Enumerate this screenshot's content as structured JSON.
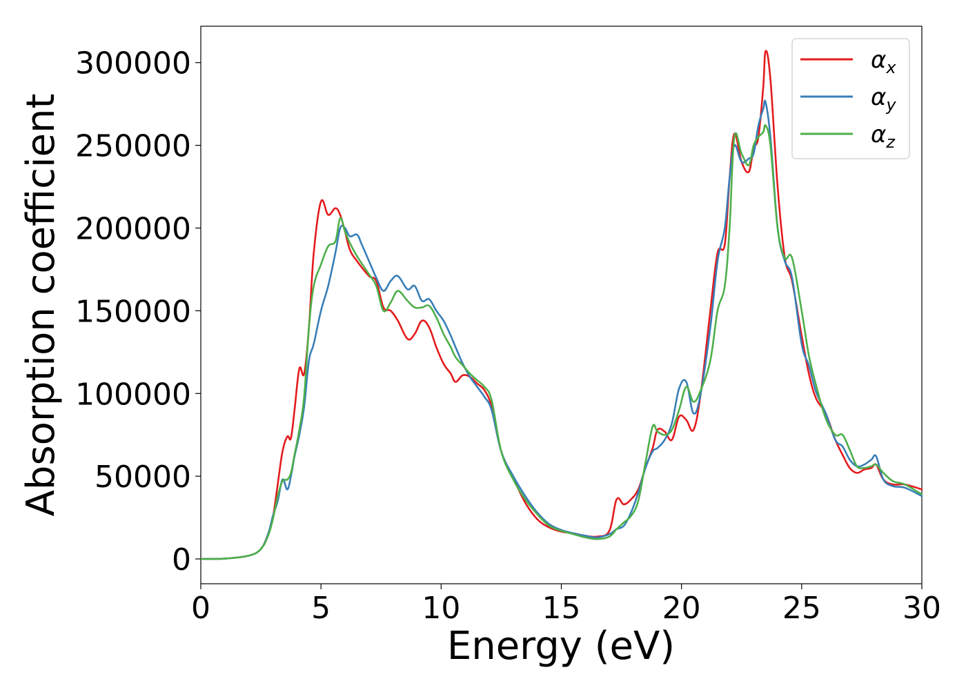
{
  "chart_data": {
    "type": "line",
    "title": "",
    "xlabel": "Energy (eV)",
    "ylabel": "Absorption coefficient",
    "xlim": [
      0,
      30
    ],
    "ylim": [
      -15000,
      322000
    ],
    "xticks": [
      0,
      5,
      10,
      15,
      20,
      25,
      30
    ],
    "xtick_labels": [
      "0",
      "5",
      "10",
      "15",
      "20",
      "25",
      "30"
    ],
    "yticks": [
      0,
      50000,
      100000,
      150000,
      200000,
      250000,
      300000
    ],
    "ytick_labels": [
      "0",
      "50000",
      "100000",
      "150000",
      "200000",
      "250000",
      "300000"
    ],
    "grid": false,
    "legend_position": "top-right",
    "series": [
      {
        "name": "αx",
        "symbol": "α",
        "subscript": "x",
        "color": "#e41a1c",
        "x": [
          0,
          1,
          2,
          2.5,
          2.8,
          3.0,
          3.2,
          3.4,
          3.6,
          3.75,
          3.9,
          4.1,
          4.3,
          4.5,
          4.7,
          5.0,
          5.3,
          5.6,
          5.8,
          6.0,
          6.2,
          6.5,
          7.0,
          7.3,
          7.6,
          7.9,
          8.2,
          8.6,
          8.9,
          9.2,
          9.5,
          9.8,
          10.1,
          10.4,
          10.6,
          10.9,
          11.2,
          11.5,
          11.8,
          12.1,
          12.5,
          13.0,
          13.5,
          14.0,
          14.5,
          15.0,
          15.5,
          16.0,
          16.5,
          17.0,
          17.3,
          17.6,
          17.9,
          18.2,
          18.5,
          18.8,
          19.0,
          19.3,
          19.6,
          19.9,
          20.2,
          20.5,
          20.8,
          21.2,
          21.5,
          21.8,
          22.0,
          22.2,
          22.5,
          22.8,
          23.0,
          23.2,
          23.4,
          23.5,
          23.7,
          24.0,
          24.3,
          24.6,
          25.0,
          25.3,
          25.6,
          26.0,
          26.4,
          26.7,
          27.0,
          27.3,
          27.6,
          27.9,
          28.1,
          28.4,
          28.8,
          29.3,
          30.0
        ],
        "values": [
          0,
          200,
          2000,
          6000,
          15000,
          25000,
          45000,
          65000,
          74000,
          73000,
          90000,
          115000,
          112000,
          140000,
          185000,
          216000,
          208000,
          212000,
          208000,
          198000,
          187000,
          180000,
          171000,
          168000,
          152000,
          150000,
          144000,
          133000,
          136000,
          144000,
          140000,
          128000,
          118000,
          112000,
          107000,
          111000,
          110000,
          106000,
          102000,
          92000,
          65000,
          49000,
          34000,
          24000,
          19000,
          16500,
          15500,
          14000,
          13500,
          17000,
          36000,
          33000,
          36000,
          42000,
          55000,
          67000,
          78000,
          77000,
          72000,
          86000,
          84000,
          78000,
          100000,
          150000,
          185000,
          190000,
          230000,
          257000,
          240000,
          234000,
          248000,
          255000,
          285000,
          307000,
          290000,
          225000,
          182000,
          168000,
          135000,
          112000,
          97000,
          88000,
          72000,
          63000,
          55000,
          52000,
          54000,
          55000,
          57000,
          48000,
          45000,
          45000,
          42000
        ]
      },
      {
        "name": "αy",
        "symbol": "α",
        "subscript": "y",
        "color": "#377eb8",
        "x": [
          0,
          1,
          2,
          2.5,
          2.8,
          3.0,
          3.2,
          3.4,
          3.6,
          3.75,
          3.9,
          4.1,
          4.3,
          4.5,
          4.7,
          5.0,
          5.3,
          5.6,
          5.8,
          6.0,
          6.2,
          6.5,
          6.7,
          7.0,
          7.3,
          7.6,
          7.9,
          8.2,
          8.6,
          8.9,
          9.2,
          9.5,
          9.8,
          10.1,
          10.4,
          10.6,
          10.9,
          11.2,
          11.5,
          11.8,
          12.1,
          12.5,
          13.0,
          13.5,
          14.0,
          14.5,
          15.0,
          15.5,
          16.0,
          16.5,
          17.0,
          17.3,
          17.6,
          17.9,
          18.2,
          18.5,
          18.8,
          19.0,
          19.3,
          19.6,
          19.9,
          20.2,
          20.5,
          20.8,
          21.2,
          21.5,
          21.8,
          22.0,
          22.2,
          22.5,
          22.8,
          23.0,
          23.2,
          23.4,
          23.5,
          23.7,
          24.0,
          24.3,
          24.6,
          25.0,
          25.3,
          25.6,
          26.0,
          26.4,
          26.7,
          27.0,
          27.3,
          27.6,
          27.9,
          28.1,
          28.4,
          28.8,
          29.3,
          30.0
        ],
        "values": [
          0,
          200,
          2000,
          6000,
          15000,
          26000,
          35000,
          48000,
          42000,
          50000,
          62000,
          75000,
          92000,
          120000,
          130000,
          150000,
          165000,
          185000,
          200000,
          200000,
          195000,
          196000,
          190000,
          180000,
          170000,
          162000,
          168000,
          171000,
          163000,
          165000,
          156000,
          157000,
          150000,
          144000,
          135000,
          128000,
          118000,
          110000,
          104000,
          98000,
          90000,
          65000,
          50000,
          38000,
          28000,
          21000,
          17500,
          15500,
          14000,
          13000,
          15000,
          18000,
          20000,
          28000,
          40000,
          55000,
          65000,
          67000,
          72000,
          82000,
          103000,
          107000,
          88000,
          100000,
          140000,
          180000,
          200000,
          230000,
          250000,
          240000,
          242000,
          245000,
          262000,
          272000,
          276000,
          255000,
          200000,
          180000,
          170000,
          130000,
          117000,
          101000,
          88000,
          72000,
          68000,
          60000,
          56000,
          57000,
          60000,
          62000,
          48000,
          44000,
          43000,
          38000
        ]
      },
      {
        "name": "αz",
        "symbol": "α",
        "subscript": "z",
        "color": "#4daf4a",
        "x": [
          0,
          1,
          2,
          2.5,
          2.8,
          3.0,
          3.2,
          3.4,
          3.6,
          3.75,
          3.9,
          4.1,
          4.3,
          4.5,
          4.7,
          5.0,
          5.3,
          5.6,
          5.8,
          6.0,
          6.2,
          6.5,
          7.0,
          7.3,
          7.6,
          7.9,
          8.2,
          8.6,
          8.9,
          9.2,
          9.5,
          9.8,
          10.1,
          10.4,
          10.6,
          10.9,
          11.2,
          11.5,
          11.8,
          12.1,
          12.5,
          13.0,
          13.5,
          14.0,
          14.5,
          15.0,
          15.5,
          16.0,
          16.5,
          17.0,
          17.3,
          17.6,
          17.9,
          18.2,
          18.5,
          18.8,
          19.0,
          19.3,
          19.6,
          19.9,
          20.2,
          20.5,
          20.8,
          21.2,
          21.5,
          21.8,
          22.0,
          22.2,
          22.5,
          22.8,
          23.0,
          23.2,
          23.4,
          23.5,
          23.7,
          24.0,
          24.3,
          24.6,
          25.0,
          25.3,
          25.6,
          26.0,
          26.4,
          26.7,
          27.0,
          27.3,
          27.6,
          27.9,
          28.1,
          28.4,
          28.8,
          29.3,
          30.0
        ],
        "values": [
          0,
          200,
          2000,
          6000,
          14000,
          24000,
          38000,
          47000,
          48000,
          52000,
          63000,
          78000,
          98000,
          140000,
          165000,
          178000,
          189000,
          192000,
          206000,
          198000,
          191000,
          183000,
          172000,
          165000,
          150000,
          155000,
          162000,
          156000,
          152000,
          152000,
          153000,
          146000,
          136000,
          128000,
          122000,
          117000,
          112000,
          108000,
          104000,
          96000,
          65000,
          48000,
          36000,
          27000,
          20000,
          17000,
          15000,
          13000,
          12000,
          13500,
          18000,
          22000,
          26000,
          35000,
          58000,
          80000,
          77000,
          75000,
          78000,
          90000,
          104000,
          95000,
          102000,
          120000,
          150000,
          165000,
          200000,
          255000,
          245000,
          238000,
          250000,
          255000,
          258000,
          262000,
          250000,
          200000,
          182000,
          182000,
          150000,
          123000,
          105000,
          85000,
          75000,
          75000,
          66000,
          56000,
          55000,
          56000,
          57000,
          52000,
          47000,
          45000,
          39000
        ]
      }
    ]
  }
}
